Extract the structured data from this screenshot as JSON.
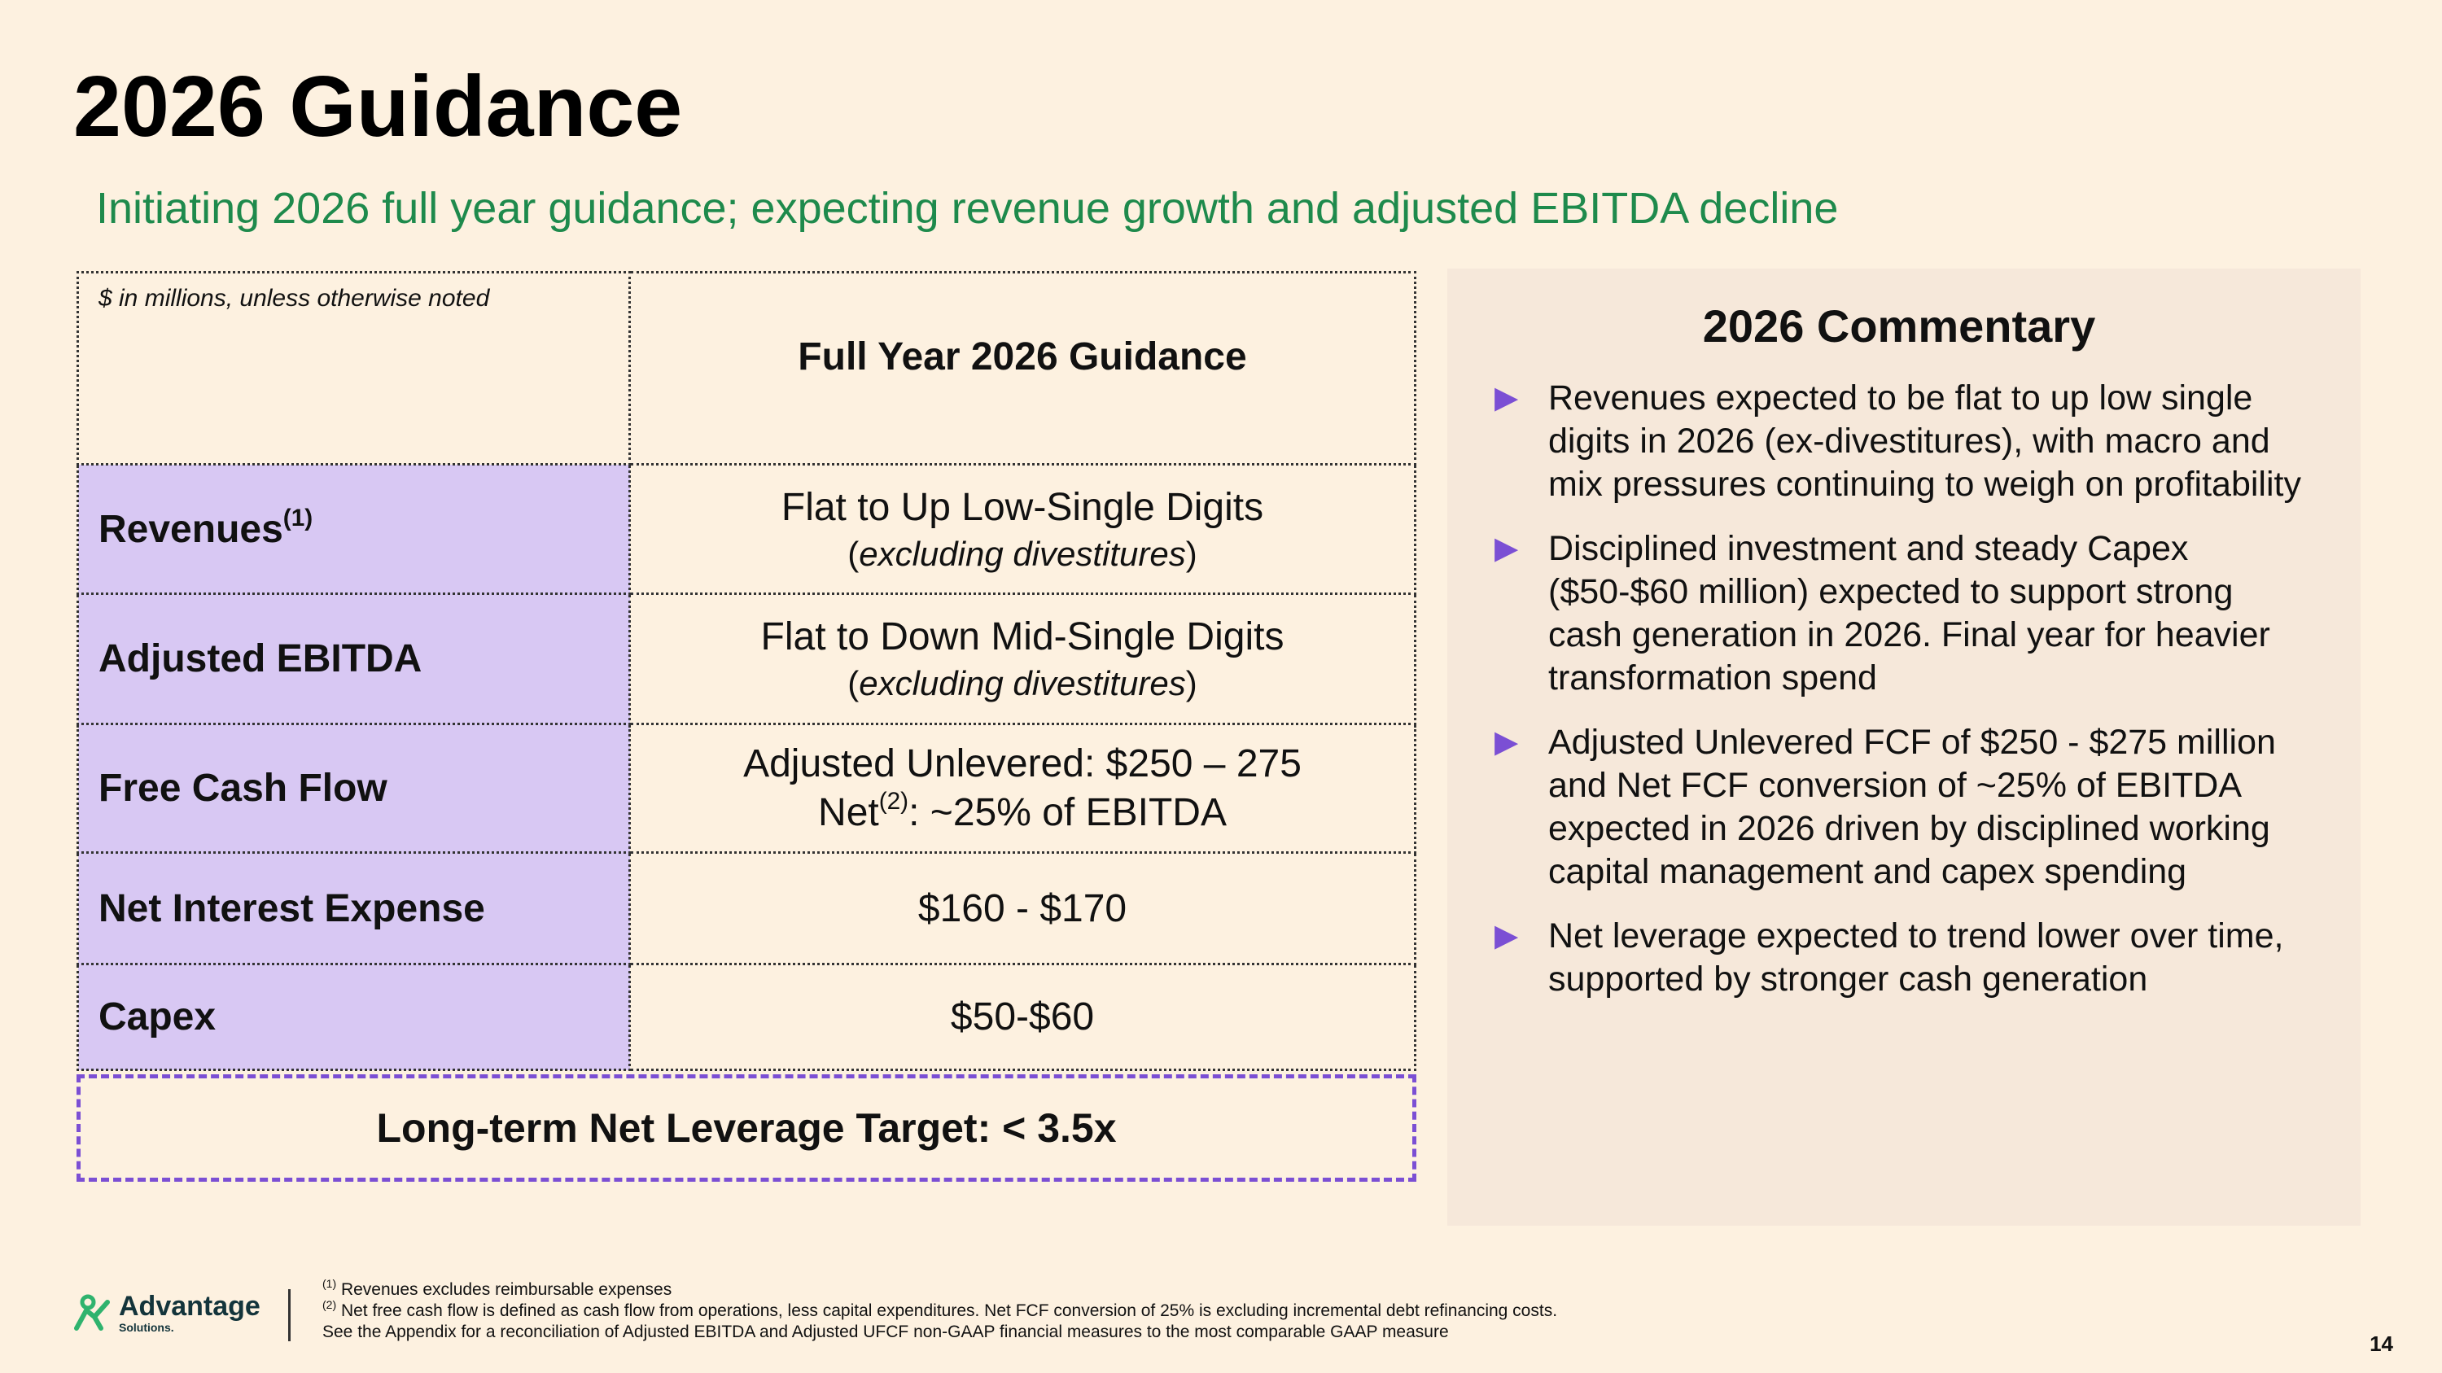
{
  "title": "2026 Guidance",
  "subtitle": "Initiating 2026 full year guidance; expecting revenue growth and adjusted EBITDA decline",
  "table": {
    "note": "$ in millions, unless otherwise noted",
    "column_header": "Full Year 2026 Guidance",
    "rows": [
      {
        "label": "Revenues",
        "label_sup": "(1)",
        "value": "Flat to Up Low-Single Digits",
        "sub": "excluding divestitures"
      },
      {
        "label": "Adjusted EBITDA",
        "value": "Flat to Down Mid-Single Digits",
        "sub": "excluding divestitures"
      },
      {
        "label": "Free Cash Flow",
        "value": "Adjusted Unlevered: $250 – 275",
        "value2_prefix": "Net",
        "value2_sup": "(2)",
        "value2_suffix": ": ~25% of EBITDA"
      },
      {
        "label": "Net Interest Expense",
        "value": "$160 - $170"
      },
      {
        "label": "Capex",
        "value": "$50-$60"
      }
    ]
  },
  "target": "Long-term Net Leverage Target: < 3.5x",
  "commentary": {
    "title": "2026 Commentary",
    "bullets": [
      "Revenues expected to be flat to up low single digits in 2026 (ex-divestitures), with macro and mix pressures continuing to weigh on profitability",
      "Disciplined investment and steady Capex ($50-$60 million) expected to support strong cash generation in 2026. Final year for heavier transformation spend",
      "Adjusted Unlevered FCF of $250 - $275 million and Net FCF conversion of ~25% of EBITDA expected in 2026 driven by disciplined working capital management and capex spending",
      "Net leverage expected to trend lower over time, supported by stronger cash generation"
    ]
  },
  "footer": {
    "logo_text": "Advantage",
    "logo_sub": "Solutions.",
    "footnote1_sup": "(1)",
    "footnote1": " Revenues excludes reimbursable expenses",
    "footnote2_sup": "(2)",
    "footnote2": " Net free cash flow is defined as cash flow from operations, less capital expenditures. Net FCF conversion of 25% is excluding incremental debt refinancing costs.",
    "footnote3": "See the Appendix for a reconciliation of Adjusted EBITDA and Adjusted UFCF non-GAAP financial measures to the most comparable GAAP measure",
    "page_number": "14"
  },
  "colors": {
    "background": "#fdf1e0",
    "subtitle_green": "#1e8a4c",
    "label_purple": "#d8c8f3",
    "accent_purple": "#7b4fd4",
    "commentary_bg": "#f6e8da",
    "logo_green": "#2fb36e"
  }
}
